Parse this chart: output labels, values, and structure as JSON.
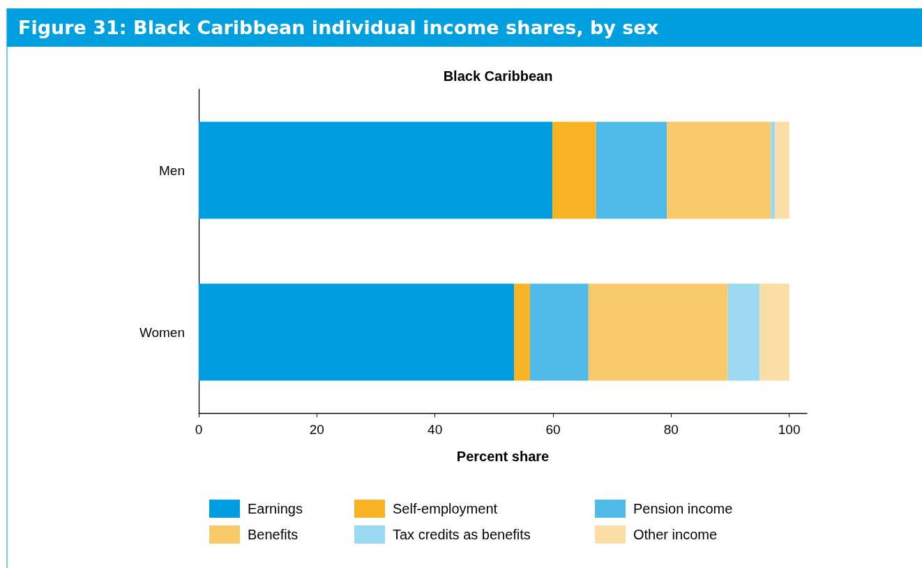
{
  "chart_data": {
    "type": "bar",
    "title": "Figure 31: Black Caribbean individual income shares, by sex",
    "subtitle": "Black Caribbean",
    "xlabel": "Percent share",
    "orientation": "horizontal",
    "stacked": true,
    "categories": [
      "Men",
      "Women"
    ],
    "series": [
      {
        "name": "Earnings",
        "color": "#009ee0",
        "values": [
          59.9,
          53.4
        ]
      },
      {
        "name": "Self-employment",
        "color": "#f6b323",
        "values": [
          7.4,
          2.7
        ]
      },
      {
        "name": "Pension income",
        "color": "#4fb9e8",
        "values": [
          12.0,
          9.9
        ]
      },
      {
        "name": "Benefits",
        "color": "#f8c968",
        "values": [
          17.6,
          23.6
        ]
      },
      {
        "name": "Tax credits as benefits",
        "color": "#9bd8f2",
        "values": [
          0.7,
          5.4
        ]
      },
      {
        "name": "Other income",
        "color": "#fbdea6",
        "values": [
          2.4,
          5.0
        ]
      }
    ],
    "xlim": [
      0,
      103
    ],
    "xticks": [
      0,
      20,
      40,
      60,
      80,
      100
    ],
    "legend": "bottom"
  }
}
